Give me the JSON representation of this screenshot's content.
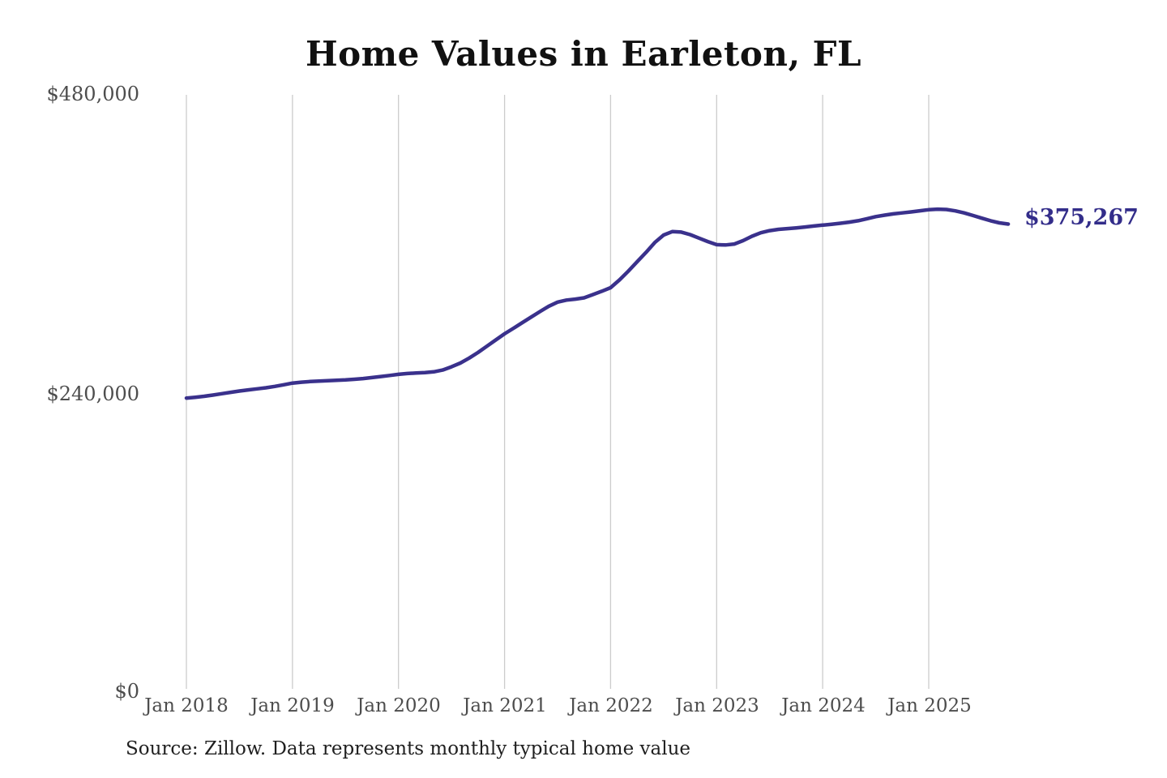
{
  "title": "Home Values in Earleton, FL",
  "source_note": "Source: Zillow. Data represents monthly typical home value",
  "end_label": "$375,267",
  "colors": {
    "line": "#3a318c",
    "grid": "#cccccc",
    "axis_text": "#4d4d4d",
    "title_text": "#111111",
    "end_label_text": "#332d8a",
    "background": "#ffffff"
  },
  "chart_data": {
    "type": "line",
    "title": "Home Values in Earleton, FL",
    "xlabel": "",
    "ylabel": "",
    "ylim": [
      0,
      480000
    ],
    "y_ticks": [
      0,
      240000,
      480000
    ],
    "y_tick_labels": [
      "$0",
      "$240,000",
      "$480,000"
    ],
    "x_tick_labels": [
      "Jan 2018",
      "Jan 2019",
      "Jan 2020",
      "Jan 2021",
      "Jan 2022",
      "Jan 2023",
      "Jan 2024",
      "Jan 2025"
    ],
    "grid": "vertical-only",
    "legend": "none",
    "end_value": 375267,
    "end_value_label": "$375,267",
    "unit": "USD",
    "series": [
      {
        "name": "Monthly typical home value",
        "x": [
          "2018-01",
          "2018-02",
          "2018-03",
          "2018-04",
          "2018-05",
          "2018-06",
          "2018-07",
          "2018-08",
          "2018-09",
          "2018-10",
          "2018-11",
          "2018-12",
          "2019-01",
          "2019-02",
          "2019-03",
          "2019-04",
          "2019-05",
          "2019-06",
          "2019-07",
          "2019-08",
          "2019-09",
          "2019-10",
          "2019-11",
          "2019-12",
          "2020-01",
          "2020-02",
          "2020-03",
          "2020-04",
          "2020-05",
          "2020-06",
          "2020-07",
          "2020-08",
          "2020-09",
          "2020-10",
          "2020-11",
          "2020-12",
          "2021-01",
          "2021-02",
          "2021-03",
          "2021-04",
          "2021-05",
          "2021-06",
          "2021-07",
          "2021-08",
          "2021-09",
          "2021-10",
          "2021-11",
          "2021-12",
          "2022-01",
          "2022-02",
          "2022-03",
          "2022-04",
          "2022-05",
          "2022-06",
          "2022-07",
          "2022-08",
          "2022-09",
          "2022-10",
          "2022-11",
          "2022-12",
          "2023-01",
          "2023-02",
          "2023-03",
          "2023-04",
          "2023-05",
          "2023-06",
          "2023-07",
          "2023-08",
          "2023-09",
          "2023-10",
          "2023-11",
          "2023-12",
          "2024-01",
          "2024-02",
          "2024-03",
          "2024-04",
          "2024-05",
          "2024-06",
          "2024-07",
          "2024-08",
          "2024-09",
          "2024-10",
          "2024-11",
          "2024-12",
          "2025-01",
          "2025-02",
          "2025-03",
          "2025-04",
          "2025-05",
          "2025-06",
          "2025-07",
          "2025-08",
          "2025-09",
          "2025-10"
        ],
        "values": [
          236000,
          236600,
          237400,
          238400,
          239500,
          240600,
          241600,
          242500,
          243400,
          244200,
          245300,
          246600,
          248000,
          248700,
          249200,
          249600,
          249900,
          250200,
          250500,
          251000,
          251600,
          252400,
          253200,
          254100,
          255000,
          255600,
          256000,
          256400,
          257000,
          258400,
          261000,
          264000,
          268000,
          272500,
          277500,
          282500,
          287400,
          291800,
          296300,
          300800,
          305200,
          309500,
          312800,
          314400,
          315200,
          316200,
          318800,
          321500,
          324300,
          330500,
          337500,
          345000,
          352500,
          360500,
          366500,
          369300,
          368800,
          366800,
          364000,
          361200,
          358800,
          358500,
          359300,
          362000,
          365500,
          368300,
          370000,
          371000,
          371600,
          372200,
          372900,
          373700,
          374400,
          375100,
          375900,
          376800,
          377900,
          379500,
          381200,
          382400,
          383400,
          384200,
          385000,
          385900,
          386700,
          387200,
          386900,
          385800,
          384200,
          382100,
          380000,
          377900,
          376200,
          375267
        ]
      }
    ]
  }
}
